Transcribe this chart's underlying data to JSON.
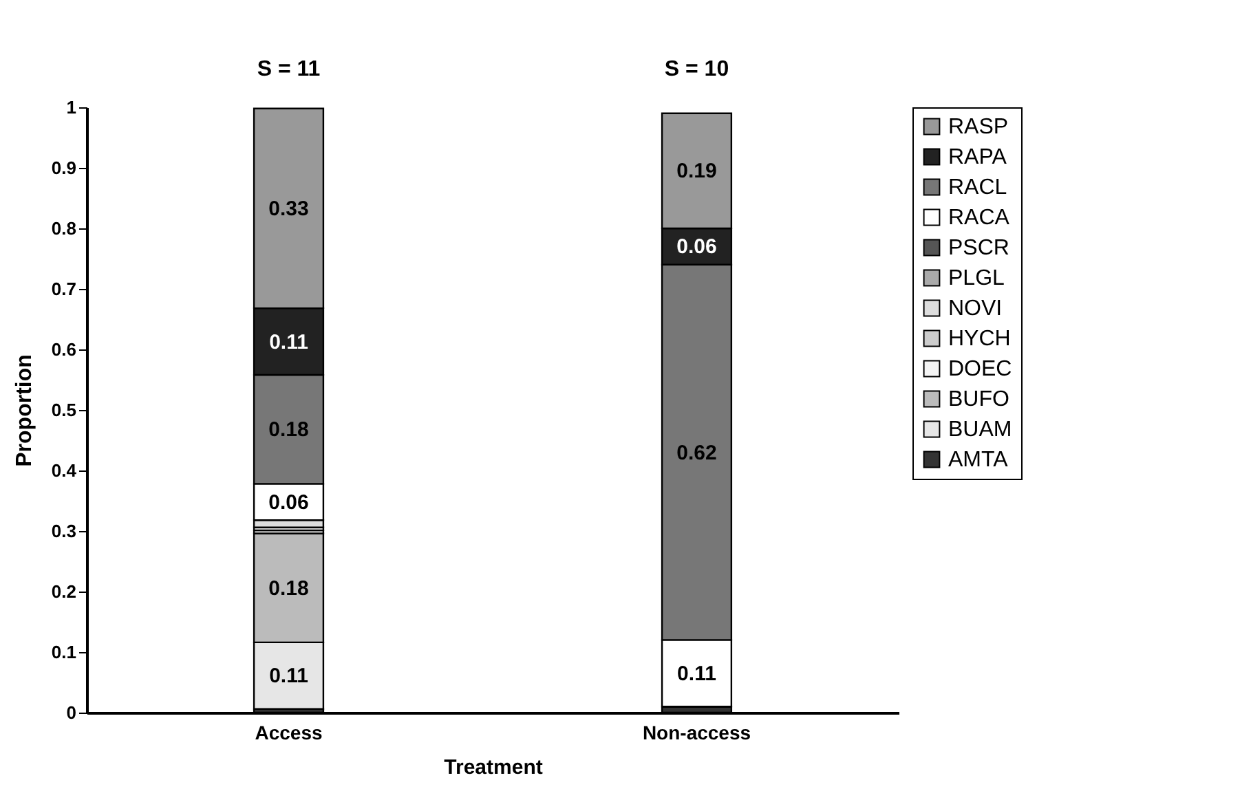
{
  "chart_data": {
    "type": "bar",
    "stacked": true,
    "xlabel": "Treatment",
    "ylabel": "Proportion",
    "categories": [
      "Access",
      "Non-access"
    ],
    "ylim": [
      0,
      1
    ],
    "yticks": [
      0,
      0.1,
      0.2,
      0.3,
      0.4,
      0.5,
      0.6,
      0.7,
      0.8,
      0.9,
      1
    ],
    "grid": false,
    "legend": "right",
    "annotations": [
      "S = 11",
      "S = 10"
    ],
    "series": [
      {
        "name": "AMTA",
        "color": "#333333",
        "values": [
          0.006,
          0.01
        ]
      },
      {
        "name": "BUAM",
        "color": "#e6e6e6",
        "values": [
          0.11,
          0
        ],
        "value_labels": [
          "0.11",
          null
        ]
      },
      {
        "name": "BUFO",
        "color": "#bbbbbb",
        "values": [
          0.18,
          0
        ],
        "value_labels": [
          "0.18",
          null
        ]
      },
      {
        "name": "DOEC",
        "color": "#f4f4f4",
        "values": [
          0.005,
          0
        ]
      },
      {
        "name": "HYCH",
        "color": "#cccccc",
        "values": [
          0.005,
          0
        ]
      },
      {
        "name": "NOVI",
        "color": "#dddddd",
        "values": [
          0.012,
          0
        ]
      },
      {
        "name": "PLGL",
        "color": "#aaaaaa",
        "values": [
          0,
          0
        ]
      },
      {
        "name": "PSCR",
        "color": "#555555",
        "values": [
          0,
          0
        ]
      },
      {
        "name": "RACA",
        "color": "#ffffff",
        "values": [
          0.06,
          0.11
        ],
        "value_labels": [
          "0.06",
          "0.11"
        ]
      },
      {
        "name": "RACL",
        "color": "#777777",
        "values": [
          0.18,
          0.62
        ],
        "value_labels": [
          "0.18",
          "0.62"
        ]
      },
      {
        "name": "RAPA",
        "color": "#222222",
        "values": [
          0.11,
          0.06
        ],
        "value_labels": [
          "0.11",
          "0.06"
        ]
      },
      {
        "name": "RASP",
        "color": "#999999",
        "values": [
          0.33,
          0.19
        ],
        "value_labels": [
          "0.33",
          "0.19"
        ]
      }
    ]
  }
}
